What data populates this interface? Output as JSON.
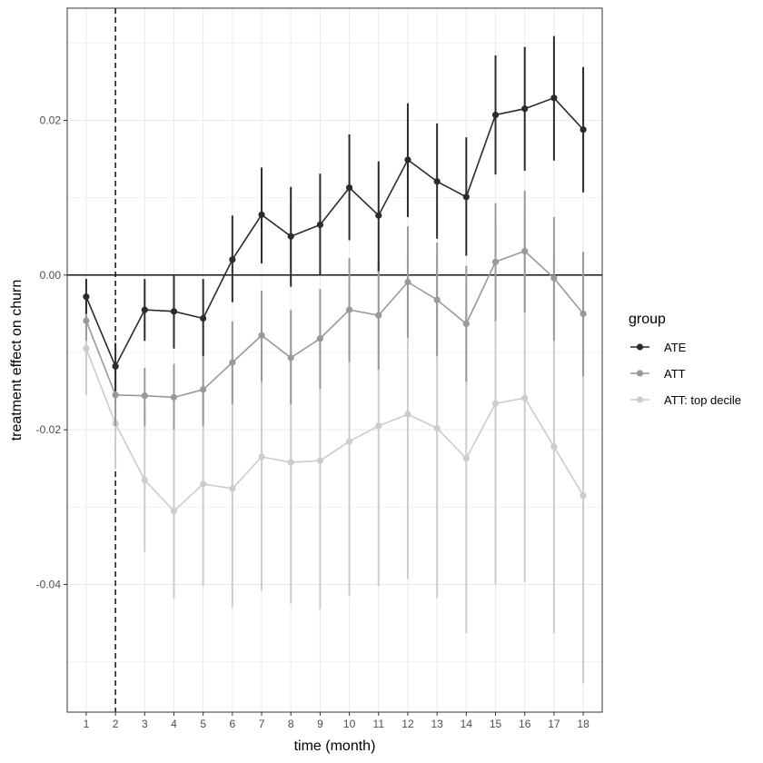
{
  "chart_data": {
    "type": "line",
    "title": "",
    "xlabel": "time (month)",
    "ylabel": "treatment effect on churn",
    "x": [
      1,
      2,
      3,
      4,
      5,
      6,
      7,
      8,
      9,
      10,
      11,
      12,
      13,
      14,
      15,
      16,
      17,
      18
    ],
    "xlim": [
      0.35,
      18.65
    ],
    "ylim": [
      -0.0565,
      0.0345
    ],
    "x_ticks": [
      1,
      2,
      3,
      4,
      5,
      6,
      7,
      8,
      9,
      10,
      11,
      12,
      13,
      14,
      15,
      16,
      17,
      18
    ],
    "y_ticks": [
      -0.04,
      -0.02,
      0.0,
      0.02
    ],
    "y_tick_labels": [
      "-0.04",
      "-0.02",
      "0.00",
      "0.02"
    ],
    "hline": 0,
    "vline_dashed": 2,
    "grid": true,
    "legend": {
      "title": "group",
      "position": "right"
    },
    "series": [
      {
        "name": "ATE",
        "color": "#2b2b2b",
        "values": [
          -0.0028,
          -0.0118,
          -0.0045,
          -0.0047,
          -0.0056,
          0.002,
          0.0078,
          0.005,
          0.0065,
          0.0113,
          0.0077,
          0.0149,
          0.0121,
          0.0101,
          0.0207,
          0.0215,
          0.0229,
          0.0188
        ],
        "lower": [
          -0.005,
          -0.015,
          -0.0085,
          -0.0095,
          -0.0105,
          -0.0035,
          0.0015,
          -0.0015,
          0.0,
          0.0045,
          0.0005,
          0.0075,
          0.0047,
          0.0025,
          0.013,
          0.0135,
          0.0148,
          0.0107
        ],
        "upper": [
          -0.0005,
          -0.0088,
          -0.0005,
          0.0,
          -0.0005,
          0.0077,
          0.0139,
          0.0114,
          0.0131,
          0.0182,
          0.0147,
          0.0222,
          0.0196,
          0.0178,
          0.0284,
          0.0295,
          0.0309,
          0.0269
        ]
      },
      {
        "name": "ATT",
        "color": "#999999",
        "values": [
          -0.0059,
          -0.0155,
          -0.0156,
          -0.0158,
          -0.0148,
          -0.0113,
          -0.0078,
          -0.0107,
          -0.0082,
          -0.0045,
          -0.0052,
          -0.0009,
          -0.0032,
          -0.0063,
          0.0017,
          0.0031,
          -0.0004,
          -0.005
        ],
        "lower": [
          -0.0085,
          -0.0195,
          -0.0195,
          -0.02,
          -0.0195,
          -0.0167,
          -0.0138,
          -0.0167,
          -0.0147,
          -0.0112,
          -0.0122,
          -0.0081,
          -0.0105,
          -0.0138,
          -0.006,
          -0.0048,
          -0.0085,
          -0.0131
        ],
        "upper": [
          -0.003,
          -0.0115,
          -0.012,
          -0.0115,
          -0.0105,
          -0.006,
          -0.002,
          -0.0045,
          -0.0018,
          0.0022,
          0.0018,
          0.0063,
          0.0042,
          0.0012,
          0.0093,
          0.0109,
          0.0075,
          0.003
        ]
      },
      {
        "name": "ATT: top decile",
        "color": "#cccccc",
        "values": [
          -0.0095,
          -0.0192,
          -0.0265,
          -0.0305,
          -0.027,
          -0.0276,
          -0.0235,
          -0.0242,
          -0.024,
          -0.0215,
          -0.0195,
          -0.018,
          -0.0198,
          -0.0237,
          -0.0166,
          -0.0159,
          -0.0222,
          -0.0285
        ],
        "lower": [
          -0.0155,
          -0.025,
          -0.0358,
          -0.0418,
          -0.0402,
          -0.043,
          -0.0408,
          -0.0425,
          -0.0432,
          -0.0415,
          -0.0402,
          -0.0393,
          -0.0418,
          -0.0463,
          -0.04,
          -0.0397,
          -0.0463,
          -0.0528
        ],
        "upper": [
          -0.0035,
          -0.0135,
          -0.0172,
          -0.0192,
          -0.0138,
          -0.0122,
          -0.0062,
          -0.0059,
          -0.0048,
          -0.0015,
          0.0012,
          0.0033,
          0.0022,
          -0.0011,
          0.0068,
          0.0079,
          0.0019,
          -0.0042
        ]
      }
    ]
  }
}
